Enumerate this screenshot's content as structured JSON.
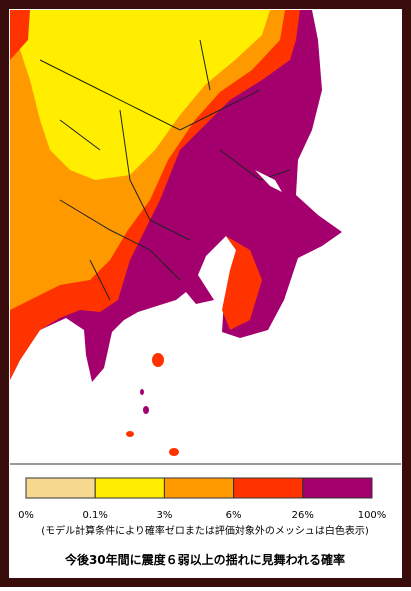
{
  "legend": {
    "labels": [
      "0%",
      "0.1%",
      "3%",
      "6%",
      "26%",
      "100%"
    ],
    "colors": [
      "#f7d98f",
      "#ffee00",
      "#ff9900",
      "#ff3300",
      "#a3006e"
    ]
  },
  "note": "(モデル計算条件により確率ゼロまたは評価対象外のメッシュは白色表示)",
  "title": "今後30年間に震度６弱以上の揺れに見舞われる確率"
}
